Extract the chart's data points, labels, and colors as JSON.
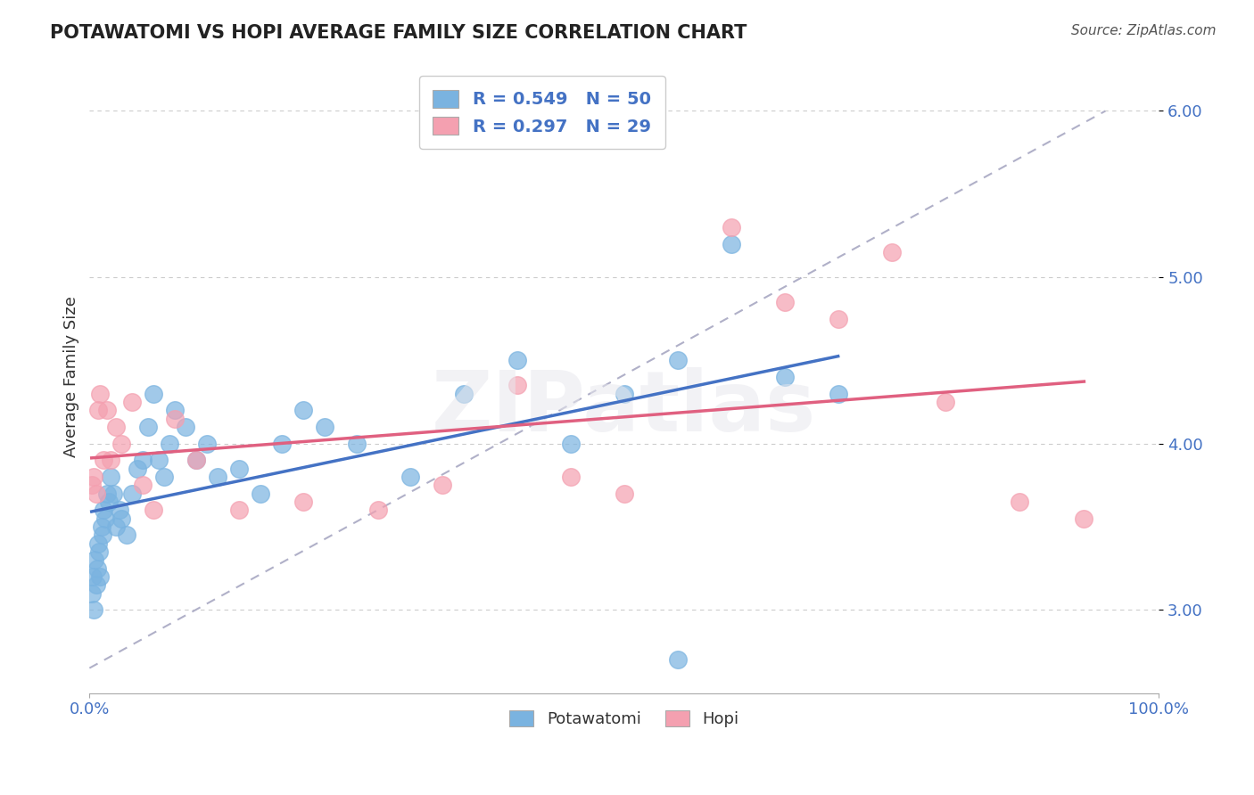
{
  "title": "POTAWATOMI VS HOPI AVERAGE FAMILY SIZE CORRELATION CHART",
  "source": "Source: ZipAtlas.com",
  "xlabel": "",
  "ylabel": "Average Family Size",
  "xlim": [
    0,
    1.0
  ],
  "ylim": [
    2.5,
    6.3
  ],
  "yticks": [
    3.0,
    4.0,
    5.0,
    6.0
  ],
  "xticks": [
    0.0,
    1.0
  ],
  "xtick_labels": [
    "0.0%",
    "100.0%"
  ],
  "ytick_labels": [
    "3.00",
    "4.00",
    "5.00",
    "6.00"
  ],
  "watermark": "ZIPatlas",
  "legend_entries": [
    {
      "label": "R = 0.549   N = 50",
      "color": "#7ab3e0"
    },
    {
      "label": "R = 0.297   N = 29",
      "color": "#f4a0b0"
    }
  ],
  "potawatomi_x": [
    0.002,
    0.003,
    0.004,
    0.005,
    0.006,
    0.007,
    0.008,
    0.009,
    0.01,
    0.011,
    0.012,
    0.013,
    0.015,
    0.016,
    0.018,
    0.02,
    0.022,
    0.025,
    0.028,
    0.03,
    0.035,
    0.04,
    0.045,
    0.05,
    0.055,
    0.06,
    0.065,
    0.07,
    0.075,
    0.08,
    0.09,
    0.1,
    0.11,
    0.12,
    0.14,
    0.16,
    0.18,
    0.2,
    0.22,
    0.25,
    0.3,
    0.35,
    0.4,
    0.45,
    0.5,
    0.55,
    0.6,
    0.65,
    0.7,
    0.55
  ],
  "potawatomi_y": [
    3.1,
    3.2,
    3.0,
    3.3,
    3.15,
    3.25,
    3.4,
    3.35,
    3.2,
    3.5,
    3.45,
    3.6,
    3.55,
    3.7,
    3.65,
    3.8,
    3.7,
    3.5,
    3.6,
    3.55,
    3.45,
    3.7,
    3.85,
    3.9,
    4.1,
    4.3,
    3.9,
    3.8,
    4.0,
    4.2,
    4.1,
    3.9,
    4.0,
    3.8,
    3.85,
    3.7,
    4.0,
    4.2,
    4.1,
    4.0,
    3.8,
    4.3,
    4.5,
    4.0,
    4.3,
    4.5,
    5.2,
    4.4,
    4.3,
    2.7
  ],
  "hopi_x": [
    0.002,
    0.004,
    0.006,
    0.008,
    0.01,
    0.013,
    0.016,
    0.02,
    0.025,
    0.03,
    0.04,
    0.05,
    0.06,
    0.08,
    0.1,
    0.14,
    0.2,
    0.27,
    0.33,
    0.4,
    0.45,
    0.5,
    0.6,
    0.65,
    0.7,
    0.75,
    0.8,
    0.87,
    0.93
  ],
  "hopi_y": [
    3.75,
    3.8,
    3.7,
    4.2,
    4.3,
    3.9,
    4.2,
    3.9,
    4.1,
    4.0,
    4.25,
    3.75,
    3.6,
    4.15,
    3.9,
    3.6,
    3.65,
    3.6,
    3.75,
    4.35,
    3.8,
    3.7,
    5.3,
    4.85,
    4.75,
    5.15,
    4.25,
    3.65,
    3.55
  ],
  "potawatomi_color": "#7ab3e0",
  "hopi_color": "#f4a0b0",
  "trend_blue_color": "#4472c4",
  "trend_pink_color": "#e06080",
  "trend_dashed_color": "#aaaacc",
  "background_color": "#ffffff",
  "grid_color": "#cccccc"
}
